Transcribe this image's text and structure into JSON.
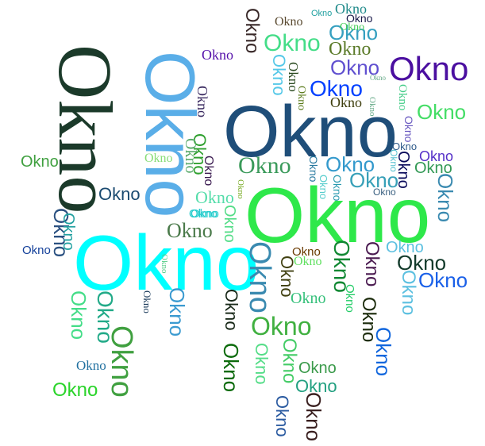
{
  "word": "Okno",
  "words": [
    {
      "text": "Okno",
      "color": "#1b3a2a"
    },
    {
      "text": "Okno",
      "color": "#5aaee8"
    },
    {
      "text": "Okno",
      "color": "#1f4e79"
    },
    {
      "text": "Okno",
      "color": "#2ee84a"
    },
    {
      "text": "Okno",
      "color": "#00ffff"
    },
    {
      "text": "Okno",
      "color": "#4b0fa0"
    },
    {
      "text": "Okno",
      "color": "#44dd88"
    },
    {
      "text": "Okno",
      "color": "#3a9a5a"
    },
    {
      "text": "Okno",
      "color": "#3399cc"
    },
    {
      "text": "Okno",
      "color": "#1a60e8"
    },
    {
      "text": "Okno",
      "color": "#40b040"
    },
    {
      "text": "Okno",
      "color": "#36a0c0"
    },
    {
      "text": "Okno",
      "color": "#4a7a4a"
    },
    {
      "text": "Okno",
      "color": "#1a4a70"
    },
    {
      "text": "Okno",
      "color": "#44dd66"
    },
    {
      "text": "Okno",
      "color": "#0040ff"
    },
    {
      "text": "Okno",
      "color": "#38a0b8"
    },
    {
      "text": "Okno",
      "color": "#123a2a"
    },
    {
      "text": "Okno",
      "color": "#6050d0"
    },
    {
      "text": "Okno",
      "color": "#1e6a9a"
    },
    {
      "text": "Okno",
      "color": "#5cc0e0"
    },
    {
      "text": "Okno",
      "color": "#22a080"
    },
    {
      "text": "Okno",
      "color": "#339955"
    },
    {
      "text": "Okno",
      "color": "#55ddaa"
    },
    {
      "text": "Okno",
      "color": "#3a9a4a"
    },
    {
      "text": "Okno",
      "color": "#2bd42b"
    },
    {
      "text": "Okno",
      "color": "#5a7a28"
    },
    {
      "text": "Okno",
      "color": "#6a3a00"
    },
    {
      "text": "Okno",
      "color": "#1e2e2a"
    },
    {
      "text": "Okno",
      "color": "#5530c8"
    },
    {
      "text": "Okno",
      "color": "#40a040"
    },
    {
      "text": "Okno",
      "color": "#35c07a"
    },
    {
      "text": "Okno",
      "color": "#20a0a0"
    },
    {
      "text": "Okno",
      "color": "#1f8a8a"
    },
    {
      "text": "Okno",
      "color": "#2a4a20"
    },
    {
      "text": "Okno",
      "color": "#3a3030"
    },
    {
      "text": "Okno",
      "color": "#5a7a1a"
    },
    {
      "text": "Okno",
      "color": "#404010"
    },
    {
      "text": "Okno",
      "color": "#2e5a8a"
    },
    {
      "text": "Okno",
      "color": "#44cc55"
    },
    {
      "text": "Okno",
      "color": "#3a2a60"
    },
    {
      "text": "Okno",
      "color": "#30a030"
    },
    {
      "text": "Okno",
      "color": "#1a3a20"
    },
    {
      "text": "Okno",
      "color": "#14409a"
    },
    {
      "text": "Okno",
      "color": "#0a3a4a"
    },
    {
      "text": "Okno",
      "color": "#7a4a10"
    },
    {
      "text": "Okno",
      "color": "#1e3aa0"
    },
    {
      "text": "Okno",
      "color": "#55d0d0"
    },
    {
      "text": "Okno",
      "color": "#2aa0e0"
    },
    {
      "text": "Okno",
      "color": "#3a6080"
    },
    {
      "text": "Okno",
      "color": "#60e060"
    },
    {
      "text": "Okno",
      "color": "#2a2a2a"
    },
    {
      "text": "Okno",
      "color": "#30b0a0"
    },
    {
      "text": "Okno",
      "color": "#4a1a50"
    },
    {
      "text": "Okno",
      "color": "#2a4a2a"
    },
    {
      "text": "Okno",
      "color": "#0a6a0a"
    },
    {
      "text": "Okno",
      "color": "#3a2010"
    },
    {
      "text": "Okno",
      "color": "#2070a0"
    },
    {
      "text": "Okno",
      "color": "#1f9a3a"
    },
    {
      "text": "Okno",
      "color": "#50b060"
    },
    {
      "text": "Okno",
      "color": "#2a9ae0"
    },
    {
      "text": "Okno",
      "color": "#88dd77"
    },
    {
      "text": "Okno",
      "color": "#3a8a30"
    },
    {
      "text": "Okno",
      "color": "#5080a0"
    },
    {
      "text": "Okno",
      "color": "#aabb33"
    },
    {
      "text": "Okno",
      "color": "#22cccc"
    },
    {
      "text": "Okno",
      "color": "#2a5050"
    },
    {
      "text": "Okno",
      "color": "#118833"
    },
    {
      "text": "Okno",
      "color": "#77aa22"
    },
    {
      "text": "Okno",
      "color": "#2255cc"
    },
    {
      "text": "Okno",
      "color": "#228844"
    },
    {
      "text": "Okno",
      "color": "#334455"
    },
    {
      "text": "Okno",
      "color": "#2299bb"
    },
    {
      "text": "Okno",
      "color": "#4466aa"
    },
    {
      "text": "Okno",
      "color": "#66aa88"
    },
    {
      "text": "Okno",
      "color": "#115577"
    },
    {
      "text": "Okno",
      "color": "#1166dd"
    },
    {
      "text": "Okno",
      "color": "#5511aa"
    },
    {
      "text": "Okno",
      "color": "#336633"
    }
  ]
}
